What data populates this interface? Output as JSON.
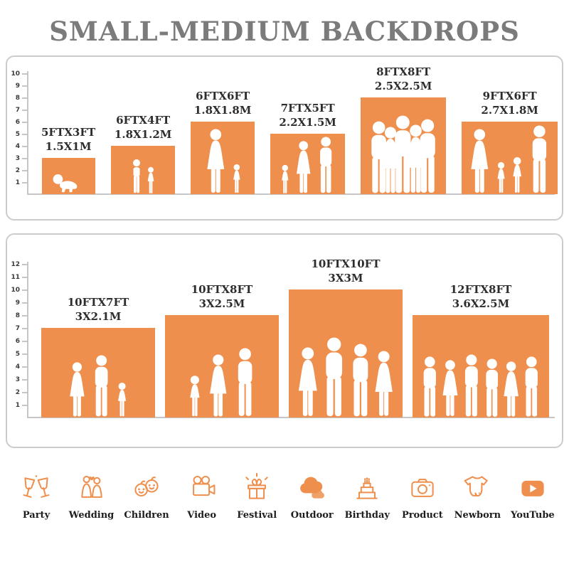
{
  "title": "SMALL-MEDIUM BACKDROPS",
  "accent_color": "#EF8F4D",
  "panels": [
    {
      "name": "small-medium-sizes",
      "ruler_max": 10,
      "items": [
        {
          "size_ft": "5FTX3FT",
          "size_m": "1.5X1M",
          "w_ft": 5,
          "h_ft": 3,
          "people": [
            {
              "type": "baby",
              "h": 0.6
            }
          ]
        },
        {
          "size_ft": "6FTX4FT",
          "size_m": "1.8X1.2M",
          "w_ft": 6,
          "h_ft": 4,
          "people": [
            {
              "type": "child",
              "h": 0.74
            },
            {
              "type": "childf",
              "h": 0.58
            }
          ]
        },
        {
          "size_ft": "6FTX6FT",
          "size_m": "1.8X1.8M",
          "w_ft": 6,
          "h_ft": 6,
          "people": [
            {
              "type": "woman",
              "h": 0.9
            },
            {
              "type": "childf",
              "h": 0.42
            }
          ]
        },
        {
          "size_ft": "7FTX5FT",
          "size_m": "2.2X1.5M",
          "w_ft": 7,
          "h_ft": 5,
          "people": [
            {
              "type": "childf",
              "h": 0.5
            },
            {
              "type": "woman",
              "h": 0.88
            },
            {
              "type": "man",
              "h": 0.95
            }
          ]
        },
        {
          "size_ft": "8FTX8FT",
          "size_m": "2.5X2.5M",
          "w_ft": 8,
          "h_ft": 8,
          "people": [
            {
              "type": "man",
              "h": 0.76
            },
            {
              "type": "woman",
              "h": 0.7
            },
            {
              "type": "man",
              "h": 0.82
            },
            {
              "type": "woman",
              "h": 0.72
            },
            {
              "type": "man",
              "h": 0.78
            }
          ]
        },
        {
          "size_ft": "9FTX6FT",
          "size_m": "2.7X1.8M",
          "w_ft": 9,
          "h_ft": 6,
          "people": [
            {
              "type": "woman",
              "h": 0.9
            },
            {
              "type": "childf",
              "h": 0.45
            },
            {
              "type": "childf",
              "h": 0.52
            },
            {
              "type": "man",
              "h": 0.95
            }
          ]
        }
      ]
    },
    {
      "name": "medium-large-sizes",
      "ruler_max": 12,
      "items": [
        {
          "size_ft": "10FTX7FT",
          "size_m": "3X2.1M",
          "w_ft": 10,
          "h_ft": 7,
          "people": [
            {
              "type": "woman",
              "h": 0.62
            },
            {
              "type": "man",
              "h": 0.7
            },
            {
              "type": "childf",
              "h": 0.4
            }
          ]
        },
        {
          "size_ft": "10FTX8FT",
          "size_m": "3X2.5M",
          "w_ft": 10,
          "h_ft": 8,
          "people": [
            {
              "type": "childf",
              "h": 0.42
            },
            {
              "type": "woman",
              "h": 0.62
            },
            {
              "type": "man",
              "h": 0.68
            }
          ]
        },
        {
          "size_ft": "10FTX10FT",
          "size_m": "3X3M",
          "w_ft": 10,
          "h_ft": 10,
          "people": [
            {
              "type": "woman",
              "h": 0.55
            },
            {
              "type": "man",
              "h": 0.63
            },
            {
              "type": "man",
              "h": 0.58
            },
            {
              "type": "woman",
              "h": 0.52
            }
          ]
        },
        {
          "size_ft": "12FTX8FT",
          "size_m": "3.6X2.5M",
          "w_ft": 12,
          "h_ft": 8,
          "people": [
            {
              "type": "man",
              "h": 0.6
            },
            {
              "type": "woman",
              "h": 0.56
            },
            {
              "type": "man",
              "h": 0.62
            },
            {
              "type": "man",
              "h": 0.58
            },
            {
              "type": "woman",
              "h": 0.55
            },
            {
              "type": "man",
              "h": 0.6
            }
          ]
        }
      ]
    }
  ],
  "categories": [
    {
      "icon": "party",
      "label": "Party"
    },
    {
      "icon": "wedding",
      "label": "Wedding"
    },
    {
      "icon": "children",
      "label": "Children"
    },
    {
      "icon": "video",
      "label": "Video"
    },
    {
      "icon": "festival",
      "label": "Festival"
    },
    {
      "icon": "outdoor",
      "label": "Outdoor"
    },
    {
      "icon": "birthday",
      "label": "Birthday"
    },
    {
      "icon": "product",
      "label": "Product"
    },
    {
      "icon": "newborn",
      "label": "Newborn"
    },
    {
      "icon": "youtube",
      "label": "YouTube"
    }
  ]
}
